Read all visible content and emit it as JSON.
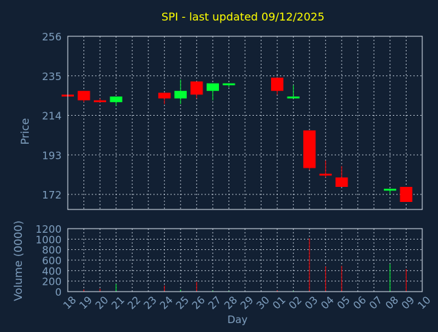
{
  "title": "SPI - last updated 09/12/2025",
  "colors": {
    "background": "#122033",
    "axis": "#dce6f2",
    "grid": "#dce6f2",
    "label": "#7f9fbf",
    "title": "#ffff00",
    "up": "#00ff33",
    "down": "#ff0000"
  },
  "chart_data": [
    {
      "type": "candlestick",
      "ylabel": "Price",
      "yticks": [
        172,
        193,
        214,
        235,
        256
      ],
      "ylim": [
        164,
        256
      ],
      "grid": true,
      "days": [
        "18",
        "19",
        "20",
        "21",
        "22",
        "23",
        "24",
        "25",
        "26",
        "27",
        "28",
        "29",
        "30",
        "01",
        "02",
        "03",
        "04",
        "05",
        "06",
        "07",
        "08",
        "09",
        "10"
      ],
      "candles": [
        {
          "day": "18",
          "open": 225,
          "high": 225,
          "low": 224,
          "close": 224
        },
        {
          "day": "19",
          "open": 227,
          "high": 227,
          "low": 221,
          "close": 222
        },
        {
          "day": "20",
          "open": 222,
          "high": 223,
          "low": 221,
          "close": 221
        },
        {
          "day": "21",
          "open": 221,
          "high": 224,
          "low": 219,
          "close": 224
        },
        {
          "day": "24",
          "open": 226,
          "high": 226,
          "low": 220,
          "close": 223
        },
        {
          "day": "25",
          "open": 223,
          "high": 233,
          "low": 220,
          "close": 227
        },
        {
          "day": "26",
          "open": 232,
          "high": 232,
          "low": 223,
          "close": 225
        },
        {
          "day": "27",
          "open": 227,
          "high": 231,
          "low": 222,
          "close": 231
        },
        {
          "day": "28",
          "open": 230,
          "high": 231,
          "low": 229,
          "close": 231
        },
        {
          "day": "01",
          "open": 234,
          "high": 234,
          "low": 225,
          "close": 227
        },
        {
          "day": "02",
          "open": 223,
          "high": 230,
          "low": 223,
          "close": 224
        },
        {
          "day": "03",
          "open": 206,
          "high": 206,
          "low": 185,
          "close": 186
        },
        {
          "day": "04",
          "open": 183,
          "high": 190,
          "low": 181,
          "close": 182
        },
        {
          "day": "05",
          "open": 181,
          "high": 187,
          "low": 176,
          "close": 176
        },
        {
          "day": "08",
          "open": 174,
          "high": 175,
          "low": 172,
          "close": 175
        },
        {
          "day": "09",
          "open": 176,
          "high": 176,
          "low": 168,
          "close": 168
        }
      ]
    },
    {
      "type": "bar",
      "ylabel": "Volume (0000)",
      "xlabel": "Day",
      "yticks": [
        0,
        200,
        400,
        600,
        800,
        1000,
        1200
      ],
      "ylim": [
        0,
        1200
      ],
      "grid": true,
      "days": [
        "18",
        "19",
        "20",
        "21",
        "22",
        "23",
        "24",
        "25",
        "26",
        "27",
        "28",
        "29",
        "30",
        "01",
        "02",
        "03",
        "04",
        "05",
        "06",
        "07",
        "08",
        "09",
        "10"
      ],
      "bars": [
        {
          "day": "19",
          "value": 40,
          "dir": "down"
        },
        {
          "day": "20",
          "value": 55,
          "dir": "down"
        },
        {
          "day": "21",
          "value": 145,
          "dir": "up"
        },
        {
          "day": "24",
          "value": 115,
          "dir": "down"
        },
        {
          "day": "25",
          "value": 35,
          "dir": "up"
        },
        {
          "day": "26",
          "value": 185,
          "dir": "down"
        },
        {
          "day": "27",
          "value": 20,
          "dir": "up"
        },
        {
          "day": "28",
          "value": 15,
          "dir": "up"
        },
        {
          "day": "01",
          "value": 25,
          "dir": "down"
        },
        {
          "day": "02",
          "value": 15,
          "dir": "up"
        },
        {
          "day": "03",
          "value": 1015,
          "dir": "down"
        },
        {
          "day": "04",
          "value": 480,
          "dir": "down"
        },
        {
          "day": "05",
          "value": 490,
          "dir": "down"
        },
        {
          "day": "08",
          "value": 525,
          "dir": "up"
        },
        {
          "day": "09",
          "value": 430,
          "dir": "down"
        }
      ]
    }
  ]
}
